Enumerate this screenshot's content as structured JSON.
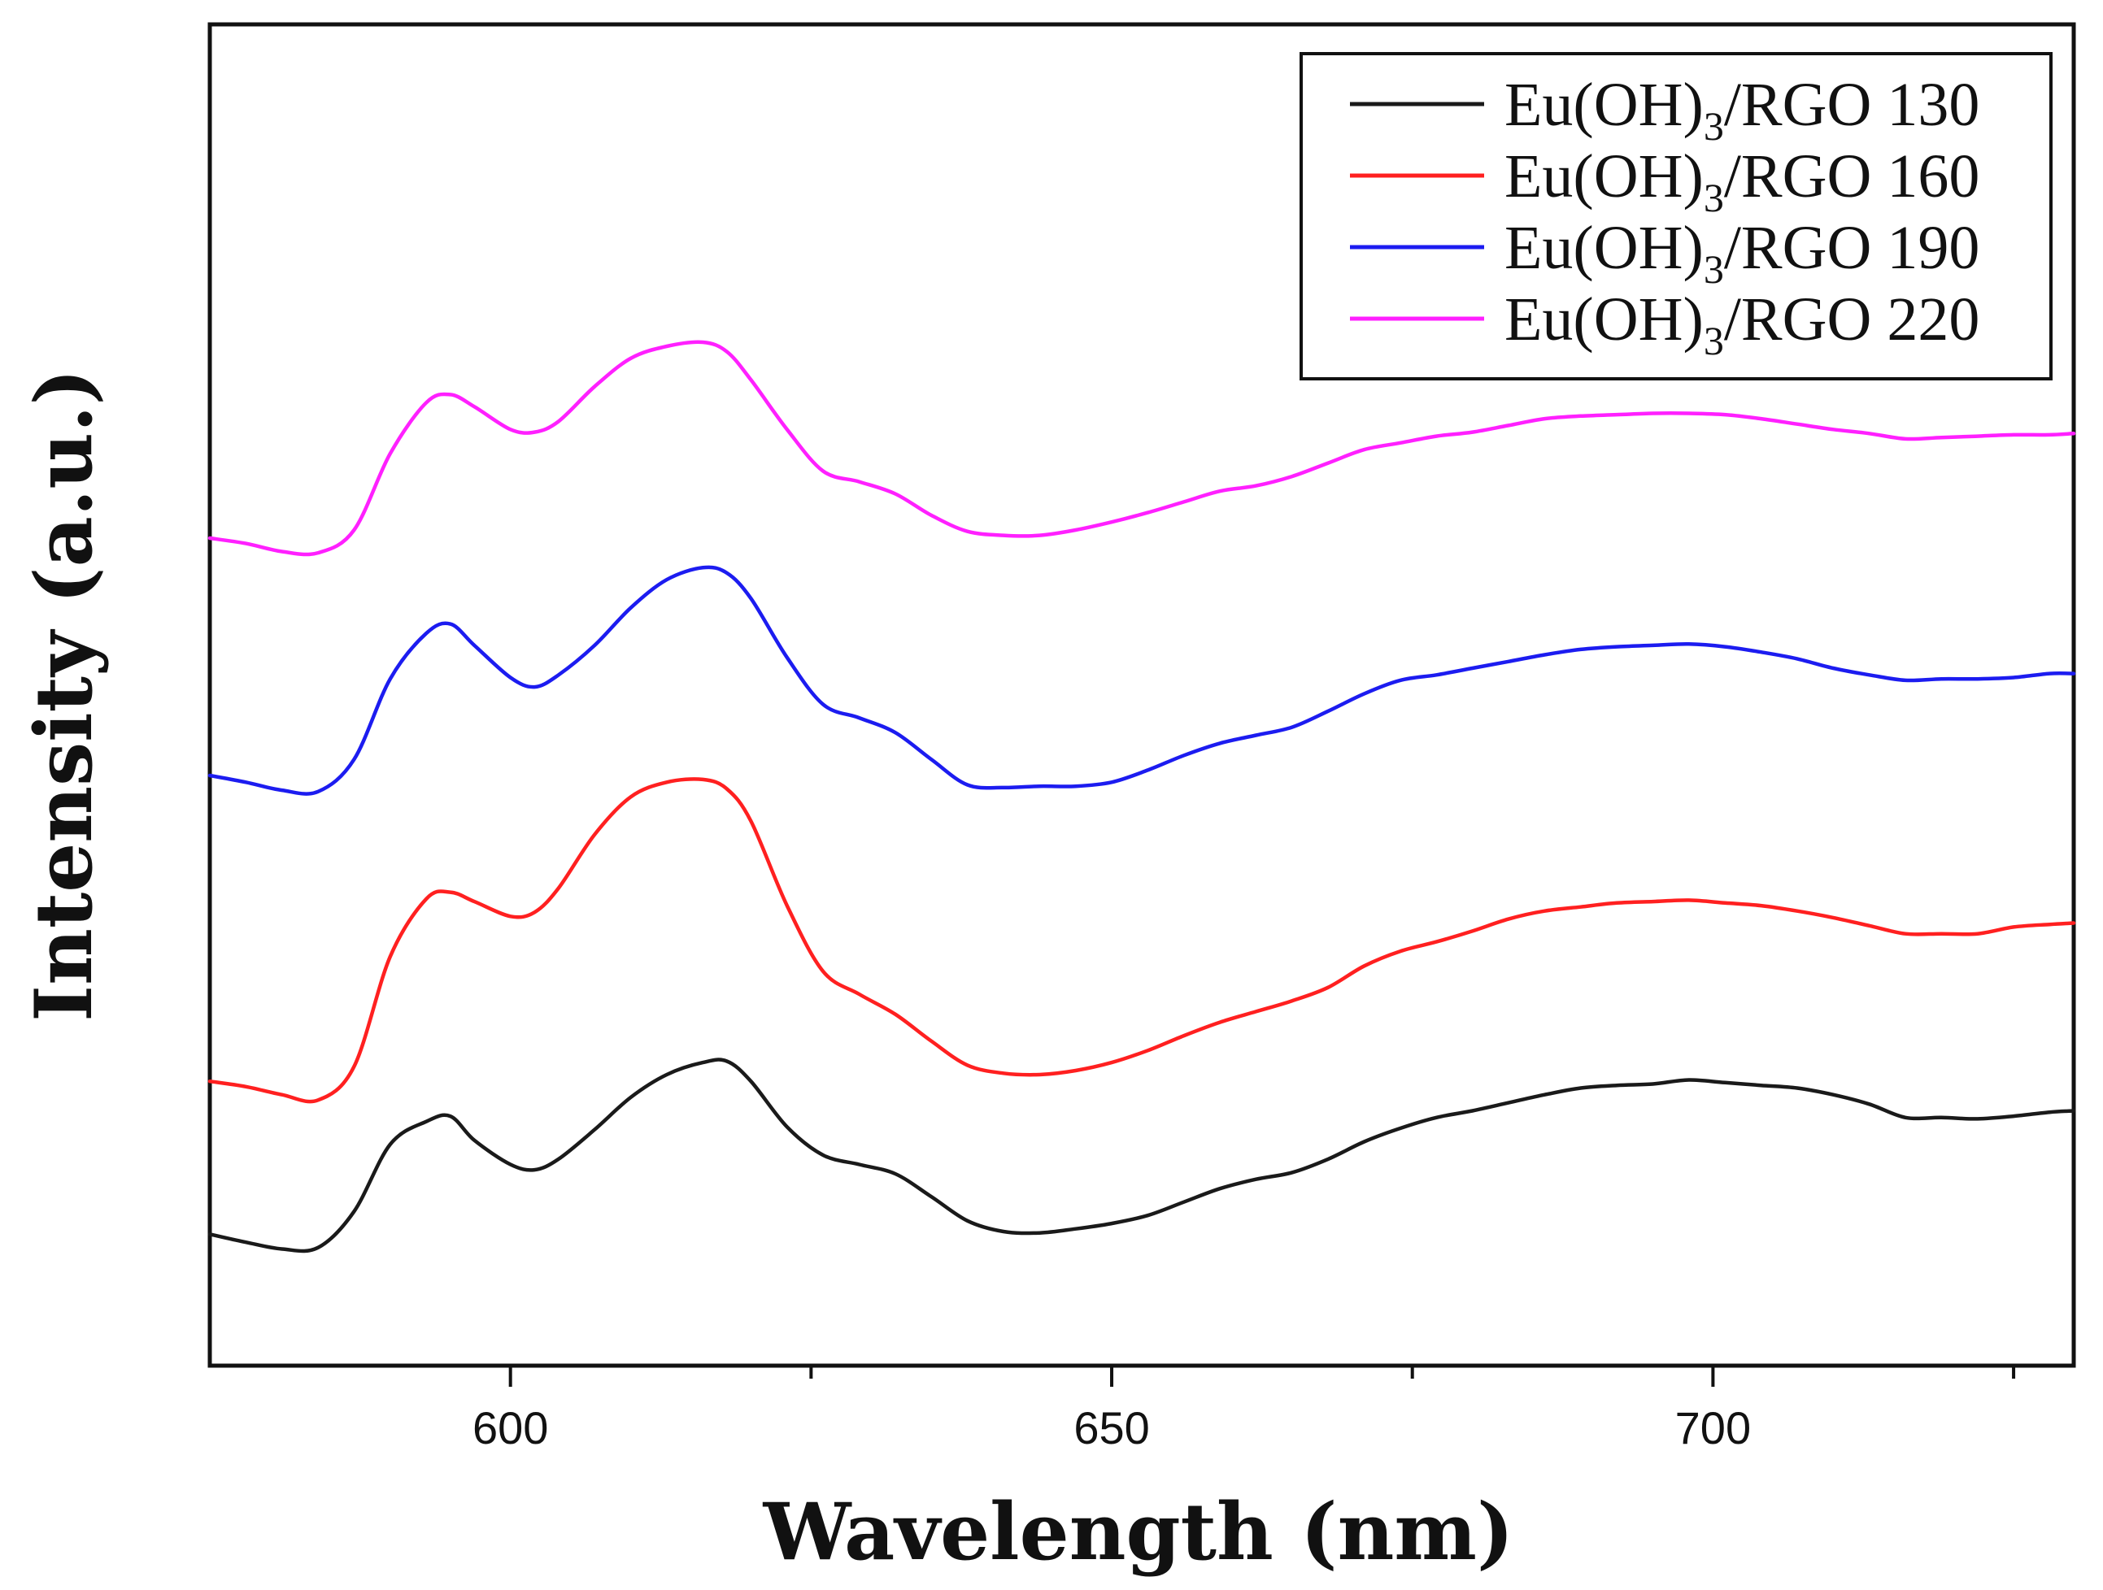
{
  "chart_data": {
    "type": "line",
    "title": "",
    "xlabel": "Wavelength (nm)",
    "ylabel": "Intensity (a.u.)",
    "xlim": [
      575,
      730
    ],
    "ylim": [
      0,
      100
    ],
    "x_major_ticks": [
      600,
      650,
      700
    ],
    "x_minor_ticks": [
      625,
      675,
      725
    ],
    "x_tick_labels": [
      "600",
      "650",
      "700"
    ],
    "y_ticks_shown": false,
    "grid": false,
    "legend_position": "top-right",
    "x": [
      575,
      578,
      581,
      584,
      587,
      590,
      593,
      595,
      597,
      600,
      602,
      604,
      607,
      610,
      613,
      616,
      618,
      620,
      623,
      626,
      629,
      632,
      635,
      638,
      641,
      644,
      647,
      650,
      653,
      656,
      659,
      662,
      665,
      668,
      671,
      674,
      677,
      680,
      683,
      686,
      689,
      692,
      695,
      698,
      701,
      704,
      707,
      710,
      713,
      716,
      719,
      722,
      725,
      728,
      730
    ],
    "series": [
      {
        "name": "Eu(OH)3/RGO 130",
        "color": "#1a1a1a",
        "values": [
          9.8,
          9.2,
          8.7,
          8.8,
          11.5,
          16.5,
          18.2,
          18.6,
          16.8,
          15.0,
          14.6,
          15.4,
          17.6,
          20.0,
          21.7,
          22.6,
          22.7,
          21.2,
          17.8,
          15.7,
          15.0,
          14.3,
          12.6,
          10.8,
          10.0,
          9.9,
          10.2,
          10.6,
          11.2,
          12.2,
          13.2,
          13.9,
          14.4,
          15.4,
          16.7,
          17.7,
          18.5,
          19.0,
          19.6,
          20.2,
          20.7,
          20.9,
          21.0,
          21.3,
          21.1,
          20.9,
          20.7,
          20.2,
          19.5,
          18.5,
          18.5,
          18.4,
          18.6,
          18.9,
          19.0
        ]
      },
      {
        "name": "Eu(OH)3/RGO 160",
        "color": "#ff2020",
        "values": [
          21.2,
          20.8,
          20.2,
          19.8,
          22.3,
          30.5,
          34.8,
          35.3,
          34.6,
          33.5,
          33.8,
          35.6,
          39.6,
          42.4,
          43.5,
          43.7,
          43.0,
          40.6,
          34.3,
          29.4,
          27.7,
          26.2,
          24.2,
          22.4,
          21.8,
          21.7,
          22.0,
          22.6,
          23.5,
          24.6,
          25.6,
          26.4,
          27.2,
          28.2,
          29.8,
          30.9,
          31.6,
          32.4,
          33.3,
          33.9,
          34.2,
          34.5,
          34.6,
          34.7,
          34.5,
          34.3,
          33.9,
          33.4,
          32.8,
          32.2,
          32.2,
          32.2,
          32.7,
          32.9,
          33.0
        ]
      },
      {
        "name": "Eu(OH)3/RGO 190",
        "color": "#1c1cf0",
        "values": [
          44.0,
          43.5,
          42.9,
          42.8,
          45.2,
          51.2,
          54.6,
          55.3,
          53.7,
          51.3,
          50.6,
          51.5,
          53.7,
          56.5,
          58.6,
          59.5,
          59.1,
          57.2,
          52.8,
          49.3,
          48.3,
          47.2,
          45.2,
          43.3,
          43.1,
          43.2,
          43.2,
          43.5,
          44.4,
          45.5,
          46.4,
          47.0,
          47.6,
          48.8,
          50.1,
          51.1,
          51.5,
          52.0,
          52.5,
          53.0,
          53.4,
          53.6,
          53.7,
          53.8,
          53.6,
          53.2,
          52.7,
          52.0,
          51.5,
          51.1,
          51.2,
          51.2,
          51.3,
          51.6,
          51.6
        ]
      },
      {
        "name": "Eu(OH)3/RGO 220",
        "color": "#ff20ff",
        "values": [
          61.7,
          61.3,
          60.7,
          60.6,
          62.3,
          68.0,
          71.8,
          72.4,
          71.5,
          69.8,
          69.6,
          70.4,
          73.0,
          75.1,
          76.0,
          76.3,
          75.6,
          73.5,
          69.8,
          66.7,
          65.9,
          65.0,
          63.4,
          62.2,
          61.9,
          61.9,
          62.3,
          62.9,
          63.6,
          64.4,
          65.2,
          65.6,
          66.3,
          67.3,
          68.3,
          68.8,
          69.3,
          69.6,
          70.1,
          70.6,
          70.8,
          70.9,
          71.0,
          71.0,
          70.9,
          70.6,
          70.2,
          69.8,
          69.5,
          69.1,
          69.2,
          69.3,
          69.4,
          69.4,
          69.5
        ]
      }
    ]
  },
  "legend": {
    "entries": [
      {
        "prefix": "Eu(OH)",
        "sub": "3",
        "suffix": "/RGO 130"
      },
      {
        "prefix": "Eu(OH)",
        "sub": "3",
        "suffix": "/RGO 160"
      },
      {
        "prefix": "Eu(OH)",
        "sub": "3",
        "suffix": "/RGO 190"
      },
      {
        "prefix": "Eu(OH)",
        "sub": "3",
        "suffix": "/RGO 220"
      }
    ]
  }
}
